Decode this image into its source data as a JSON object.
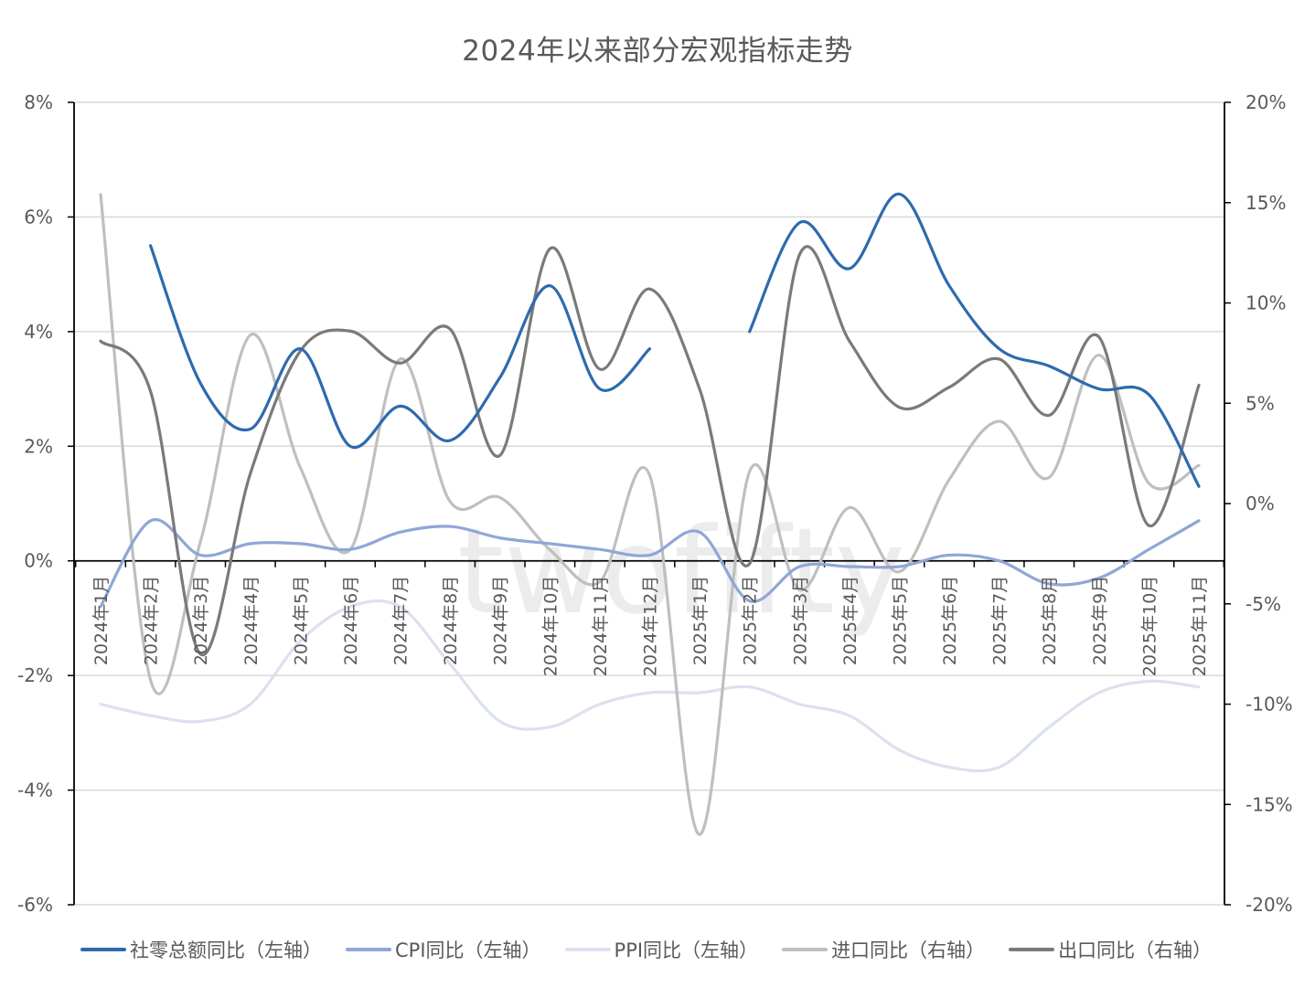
{
  "title": "2024年以来部分宏观指标走势",
  "watermark": "twofifty",
  "chart_data": {
    "type": "line",
    "title": "2024年以来部分宏观指标走势",
    "xlabel": "",
    "ylabel_left": "",
    "ylabel_right": "",
    "ylim_left": [
      -0.06,
      0.08
    ],
    "ylim_right": [
      -0.2,
      0.2
    ],
    "yticks_left": [
      "8%",
      "6%",
      "4%",
      "2%",
      "0%",
      "-2%",
      "-4%",
      "-6%"
    ],
    "yticks_right": [
      "20%",
      "15%",
      "10%",
      "5%",
      "0%",
      "-5%",
      "-10%",
      "-15%",
      "-20%"
    ],
    "grid": true,
    "legend_position": "bottom",
    "categories": [
      "2024年1月",
      "2024年2月",
      "2024年3月",
      "2024年4月",
      "2024年5月",
      "2024年6月",
      "2024年7月",
      "2024年8月",
      "2024年9月",
      "2024年10月",
      "2024年11月",
      "2024年12月",
      "2025年1月",
      "2025年2月",
      "2025年3月",
      "2025年4月",
      "2025年5月",
      "2025年6月",
      "2025年7月",
      "2025年8月",
      "2025年9月",
      "2025年10月",
      "2025年11月"
    ],
    "series": [
      {
        "name": "社零总额同比（左轴）",
        "axis": "left",
        "color": "#2e6aad",
        "width": 3.2,
        "values": [
          null,
          5.5,
          3.1,
          2.3,
          3.7,
          2.0,
          2.7,
          2.1,
          3.2,
          4.8,
          3.0,
          3.7,
          null,
          4.0,
          5.9,
          5.1,
          6.4,
          4.8,
          3.7,
          3.4,
          3.0,
          2.9,
          1.3
        ]
      },
      {
        "name": "CPI同比（左轴）",
        "axis": "left",
        "color": "#8fa6d6",
        "width": 3.2,
        "values": [
          -0.8,
          0.7,
          0.1,
          0.3,
          0.3,
          0.2,
          0.5,
          0.6,
          0.4,
          0.3,
          0.2,
          0.1,
          0.5,
          -0.7,
          -0.1,
          -0.1,
          -0.1,
          0.1,
          0.0,
          -0.4,
          -0.3,
          0.2,
          0.7
        ]
      },
      {
        "name": "PPI同比（左轴）",
        "axis": "left",
        "color": "#dbe1ef",
        "width": 3.2,
        "values": [
          -2.5,
          -2.7,
          -2.8,
          -2.5,
          -1.4,
          -0.8,
          -0.8,
          -1.8,
          -2.8,
          -2.9,
          -2.5,
          -2.3,
          -2.3,
          -2.2,
          -2.5,
          -2.7,
          -3.3,
          -3.6,
          -3.6,
          -2.9,
          -2.3,
          -2.1,
          -2.2
        ]
      },
      {
        "name": "进口同比（右轴）",
        "axis": "right",
        "color": "#bfbfbf",
        "width": 3.2,
        "values": [
          15.4,
          -8.8,
          -1.9,
          8.4,
          1.8,
          -2.3,
          7.2,
          0.1,
          0.3,
          -2.3,
          -3.9,
          1.4,
          -16.5,
          1.6,
          -4.3,
          -0.2,
          -3.4,
          1.2,
          4.1,
          1.3,
          7.4,
          1.0,
          1.9
        ]
      },
      {
        "name": "出口同比（右轴）",
        "axis": "right",
        "color": "#7a7a7a",
        "width": 3.2,
        "values": [
          8.1,
          5.6,
          -7.5,
          1.5,
          7.6,
          8.6,
          7.0,
          8.7,
          2.4,
          12.7,
          6.7,
          10.7,
          5.7,
          -3.0,
          12.4,
          8.1,
          4.8,
          5.8,
          7.2,
          4.4,
          8.3,
          -1.1,
          5.9
        ]
      }
    ]
  },
  "legend": [
    {
      "label": "社零总额同比（左轴）",
      "color": "#2e6aad"
    },
    {
      "label": "CPI同比（左轴）",
      "color": "#8fa6d6"
    },
    {
      "label": "PPI同比（左轴）",
      "color": "#dbe1ef"
    },
    {
      "label": "进口同比（右轴）",
      "color": "#bfbfbf"
    },
    {
      "label": "出口同比（右轴）",
      "color": "#7a7a7a"
    }
  ]
}
